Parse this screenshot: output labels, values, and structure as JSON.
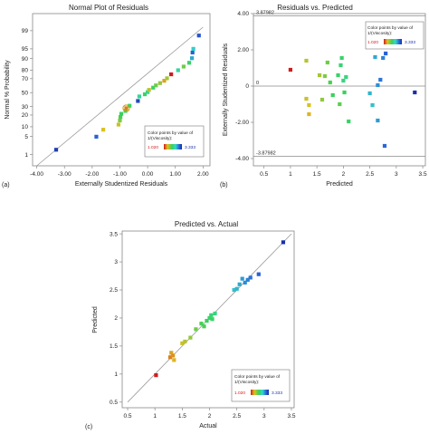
{
  "figure_labels": {
    "a": "(a)",
    "b": "(b)",
    "c": "(c)"
  },
  "legend": {
    "title_line1": "Color points by value of",
    "title_line2": "1/(Viscosity):",
    "min_label": "1.020",
    "max_label": "3.333",
    "colors": [
      "#d01c1c",
      "#e0c020",
      "#3ad15a",
      "#33d9c8",
      "#2a63d8",
      "#1830a8"
    ]
  },
  "chart_data": [
    {
      "type": "scatter",
      "title": "Normal Plot of Residuals",
      "xlabel": "Externally Studentized Residuals",
      "ylabel": "Normal % Probability",
      "xlim": [
        -4.0,
        2.0
      ],
      "x_ticks": [
        "-4.00",
        "-3.00",
        "-2.00",
        "-1.00",
        "0.00",
        "1.00",
        "2.00"
      ],
      "y_ticks": [
        "1",
        "5",
        "10",
        "20",
        "30",
        "50",
        "70",
        "80",
        "90",
        "95",
        "99"
      ],
      "grid": false,
      "legend_position": "bottom-right",
      "reference_line": {
        "from": [
          -4.0,
          0.3
        ],
        "to": [
          2.0,
          99.3
        ]
      },
      "points": [
        {
          "x": -3.3,
          "y": 1.6,
          "c": 3.2
        },
        {
          "x": -1.85,
          "y": 4.9,
          "c": 2.9
        },
        {
          "x": -1.6,
          "y": 8.2,
          "c": 1.5
        },
        {
          "x": -1.05,
          "y": 11.5,
          "c": 1.55
        },
        {
          "x": -1.0,
          "y": 14.8,
          "c": 1.75
        },
        {
          "x": -0.98,
          "y": 18.0,
          "c": 1.9
        },
        {
          "x": -0.95,
          "y": 21.3,
          "c": 1.95
        },
        {
          "x": -0.8,
          "y": 24.6,
          "c": 2.05
        },
        {
          "x": -0.77,
          "y": 27.9,
          "c": 1.3
        },
        {
          "x": -0.65,
          "y": 31.1,
          "c": 2.0
        },
        {
          "x": -0.35,
          "y": 37.7,
          "c": 3.1
        },
        {
          "x": -0.3,
          "y": 44.3,
          "c": 2.2
        },
        {
          "x": -0.1,
          "y": 47.5,
          "c": 2.0
        },
        {
          "x": 0.0,
          "y": 50.8,
          "c": 2.15
        },
        {
          "x": 0.05,
          "y": 54.1,
          "c": 1.6
        },
        {
          "x": 0.2,
          "y": 57.4,
          "c": 2.0
        },
        {
          "x": 0.3,
          "y": 60.7,
          "c": 1.8
        },
        {
          "x": 0.45,
          "y": 64.0,
          "c": 1.7
        },
        {
          "x": 0.6,
          "y": 67.2,
          "c": 1.4
        },
        {
          "x": 0.7,
          "y": 70.5,
          "c": 1.65
        },
        {
          "x": 0.85,
          "y": 75.4,
          "c": 1.0
        },
        {
          "x": 1.1,
          "y": 80.0,
          "c": 2.25
        },
        {
          "x": 1.3,
          "y": 83.6,
          "c": 1.8
        },
        {
          "x": 1.5,
          "y": 86.9,
          "c": 2.0
        },
        {
          "x": 1.6,
          "y": 90.2,
          "c": 2.6
        },
        {
          "x": 1.62,
          "y": 93.4,
          "c": 2.9
        },
        {
          "x": 1.65,
          "y": 95.0,
          "c": 2.45
        },
        {
          "x": 1.85,
          "y": 98.4,
          "c": 3.0
        }
      ]
    },
    {
      "type": "scatter",
      "title": "Residuals vs. Predicted",
      "xlabel": "Predicted",
      "ylabel": "Externally Studentized Residuals",
      "xlim": [
        0.3,
        3.55
      ],
      "ylim": [
        -4.4,
        4.0
      ],
      "x_ticks": [
        "0.5",
        "1",
        "1.5",
        "2",
        "2.5",
        "3",
        "3.5"
      ],
      "y_ticks": [
        "-4.00",
        "-2.00",
        "0",
        "2.00",
        "4.00"
      ],
      "grid": false,
      "legend_position": "top-right",
      "reference_lines": [
        {
          "y": 3.87982,
          "label": "3.87982"
        },
        {
          "y": 0,
          "label": "0"
        },
        {
          "y": -3.87982,
          "label": "-3.87982"
        }
      ],
      "points": [
        {
          "x": 1.0,
          "y": 0.9,
          "c": 1.0
        },
        {
          "x": 1.3,
          "y": 1.4,
          "c": 1.6
        },
        {
          "x": 1.3,
          "y": -0.7,
          "c": 1.55
        },
        {
          "x": 1.35,
          "y": -1.05,
          "c": 1.5
        },
        {
          "x": 1.35,
          "y": -1.55,
          "c": 1.45
        },
        {
          "x": 1.55,
          "y": 0.6,
          "c": 1.65
        },
        {
          "x": 1.6,
          "y": -0.75,
          "c": 1.7
        },
        {
          "x": 1.65,
          "y": 0.55,
          "c": 1.75
        },
        {
          "x": 1.7,
          "y": 1.3,
          "c": 1.8
        },
        {
          "x": 1.75,
          "y": 0.2,
          "c": 1.9
        },
        {
          "x": 1.8,
          "y": -0.5,
          "c": 1.95
        },
        {
          "x": 1.9,
          "y": 0.6,
          "c": 2.0
        },
        {
          "x": 1.93,
          "y": -1.0,
          "c": 1.85
        },
        {
          "x": 1.95,
          "y": 1.15,
          "c": 2.05
        },
        {
          "x": 1.97,
          "y": 1.55,
          "c": 2.0
        },
        {
          "x": 2.0,
          "y": 0.3,
          "c": 2.1
        },
        {
          "x": 2.02,
          "y": -0.35,
          "c": 1.95
        },
        {
          "x": 2.05,
          "y": 0.5,
          "c": 2.1
        },
        {
          "x": 2.1,
          "y": -1.95,
          "c": 2.0
        },
        {
          "x": 2.5,
          "y": -0.4,
          "c": 2.55
        },
        {
          "x": 2.55,
          "y": -1.05,
          "c": 2.5
        },
        {
          "x": 2.6,
          "y": 1.6,
          "c": 2.6
        },
        {
          "x": 2.65,
          "y": 0.05,
          "c": 2.7
        },
        {
          "x": 2.65,
          "y": -1.9,
          "c": 2.65
        },
        {
          "x": 2.7,
          "y": 0.35,
          "c": 2.8
        },
        {
          "x": 2.75,
          "y": 1.55,
          "c": 2.75
        },
        {
          "x": 2.8,
          "y": 1.8,
          "c": 2.9
        },
        {
          "x": 2.78,
          "y": -3.3,
          "c": 2.85
        },
        {
          "x": 3.35,
          "y": -0.35,
          "c": 3.333
        }
      ]
    },
    {
      "type": "scatter",
      "title": "Predicted vs. Actual",
      "xlabel": "Actual",
      "ylabel": "Predicted",
      "xlim": [
        0.4,
        3.55
      ],
      "ylim": [
        0.4,
        3.55
      ],
      "x_ticks": [
        "0.5",
        "1",
        "1.5",
        "2",
        "2.5",
        "3",
        "3.5"
      ],
      "y_ticks": [
        "0.5",
        "1",
        "1.5",
        "2",
        "2.5",
        "3",
        "3.5"
      ],
      "grid": false,
      "legend_position": "bottom-right",
      "reference_line": {
        "from": [
          0.5,
          0.5
        ],
        "to": [
          3.5,
          3.5
        ]
      },
      "points": [
        {
          "x": 1.02,
          "y": 0.98,
          "c": 1.02
        },
        {
          "x": 1.28,
          "y": 1.3,
          "c": 1.3
        },
        {
          "x": 1.3,
          "y": 1.38,
          "c": 1.4
        },
        {
          "x": 1.33,
          "y": 1.33,
          "c": 1.35
        },
        {
          "x": 1.35,
          "y": 1.25,
          "c": 1.45
        },
        {
          "x": 1.5,
          "y": 1.55,
          "c": 1.55
        },
        {
          "x": 1.55,
          "y": 1.58,
          "c": 1.6
        },
        {
          "x": 1.65,
          "y": 1.65,
          "c": 1.7
        },
        {
          "x": 1.75,
          "y": 1.8,
          "c": 1.8
        },
        {
          "x": 1.85,
          "y": 1.9,
          "c": 1.9
        },
        {
          "x": 1.95,
          "y": 1.95,
          "c": 1.95
        },
        {
          "x": 2.0,
          "y": 2.0,
          "c": 2.0
        },
        {
          "x": 2.03,
          "y": 2.05,
          "c": 2.05
        },
        {
          "x": 1.9,
          "y": 1.85,
          "c": 1.9
        },
        {
          "x": 2.05,
          "y": 1.98,
          "c": 2.0
        },
        {
          "x": 2.1,
          "y": 2.08,
          "c": 2.1
        },
        {
          "x": 2.45,
          "y": 2.5,
          "c": 2.5
        },
        {
          "x": 2.5,
          "y": 2.52,
          "c": 2.55
        },
        {
          "x": 2.55,
          "y": 2.6,
          "c": 2.6
        },
        {
          "x": 2.6,
          "y": 2.7,
          "c": 2.65
        },
        {
          "x": 2.65,
          "y": 2.63,
          "c": 2.7
        },
        {
          "x": 2.7,
          "y": 2.68,
          "c": 2.75
        },
        {
          "x": 2.75,
          "y": 2.72,
          "c": 2.8
        },
        {
          "x": 2.9,
          "y": 2.78,
          "c": 2.9
        },
        {
          "x": 3.35,
          "y": 3.35,
          "c": 3.333
        }
      ]
    }
  ]
}
